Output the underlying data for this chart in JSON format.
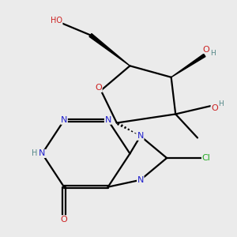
{
  "background_color": "#ebebeb",
  "N_color": "#2020cc",
  "O_color": "#cc2020",
  "Cl_color": "#22aa22",
  "H_color": "#558888",
  "bond_color": "#000000",
  "lw": 1.6,
  "fs": 8.0,
  "xlim": [
    0,
    10
  ],
  "ylim": [
    0,
    10
  ]
}
